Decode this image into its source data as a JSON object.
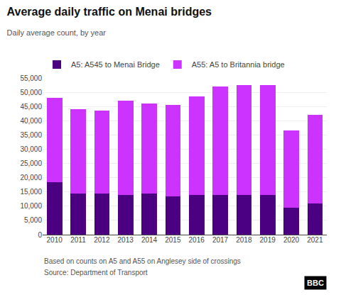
{
  "chart_data": {
    "type": "bar",
    "title": "Average daily traffic on Menai bridges",
    "subtitle": "Daily average count, by year",
    "categories": [
      "2010",
      "2011",
      "2012",
      "2013",
      "2014",
      "2015",
      "2016",
      "2017",
      "2018",
      "2019",
      "2020",
      "2021"
    ],
    "series": [
      {
        "name": "A5: A545 to Menai Bridge",
        "color": "#4a0080",
        "values": [
          18500,
          14500,
          14500,
          14000,
          14500,
          13500,
          14000,
          14000,
          14000,
          14000,
          9500,
          11000
        ]
      },
      {
        "name": "A55: A5 to Britannia bridge",
        "color": "#cc33ff",
        "values": [
          29500,
          29500,
          29000,
          33000,
          31500,
          32000,
          34500,
          38000,
          38500,
          38500,
          27000,
          31000
        ]
      }
    ],
    "stacked": true,
    "ylim": [
      0,
      55000
    ],
    "yticks": [
      0,
      {
        "value": 5000,
        "label": "5,000"
      },
      {
        "value": 10000,
        "label": "10,000"
      },
      {
        "value": 15000,
        "label": "15,000"
      },
      {
        "value": 20000,
        "label": "20,000"
      },
      {
        "value": 25000,
        "label": "25,000"
      },
      {
        "value": 30000,
        "label": "30,000"
      },
      {
        "value": 35000,
        "label": "35,000"
      },
      {
        "value": 40000,
        "label": "40,000"
      },
      {
        "value": 45000,
        "label": "45,000"
      },
      {
        "value": 50000,
        "label": "50,000"
      },
      {
        "value": 55000,
        "label": "55,000"
      }
    ],
    "grid": true,
    "legend": "top left",
    "annotations": [
      "Based on counts on A5 and A55 on Anglesey side of crossings",
      "Source: Department of Transport",
      "BBC"
    ]
  }
}
